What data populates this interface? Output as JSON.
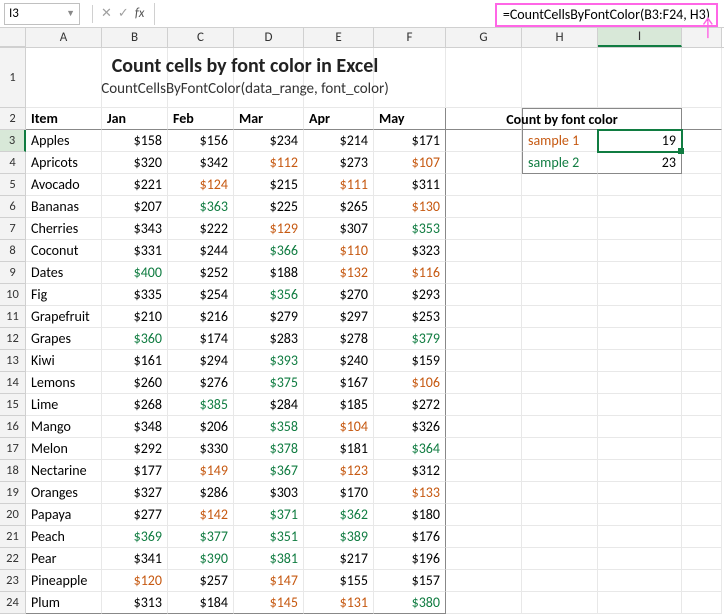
{
  "active_cell_ref": "I3",
  "formula_display": "=CountCellsByFontColor(B3:F24, H3)",
  "colors": {
    "black": "#000000",
    "orange": "#c65911",
    "green": "#107c41",
    "formula_box_border": "#ff66e6",
    "header_bg": "#f3f3f3",
    "grid_line": "#e8e8e8",
    "selection_green": "#107c41"
  },
  "columns": [
    "A",
    "B",
    "C",
    "D",
    "E",
    "F",
    "G",
    "H",
    "I"
  ],
  "title": {
    "main": "Count cells by font color in Excel",
    "sub": "CountCellsByFontColor(data_range, font_color)"
  },
  "data_table": {
    "header": {
      "item": "Item",
      "months": [
        "Jan",
        "Feb",
        "Mar",
        "Apr",
        "May"
      ]
    },
    "rows": [
      {
        "item": "Apples",
        "v": [
          {
            "t": "$158",
            "c": "black"
          },
          {
            "t": "$156",
            "c": "black"
          },
          {
            "t": "$234",
            "c": "black"
          },
          {
            "t": "$214",
            "c": "black"
          },
          {
            "t": "$171",
            "c": "black"
          }
        ]
      },
      {
        "item": "Apricots",
        "v": [
          {
            "t": "$320",
            "c": "black"
          },
          {
            "t": "$342",
            "c": "black"
          },
          {
            "t": "$112",
            "c": "orange"
          },
          {
            "t": "$273",
            "c": "black"
          },
          {
            "t": "$107",
            "c": "orange"
          }
        ]
      },
      {
        "item": "Avocado",
        "v": [
          {
            "t": "$221",
            "c": "black"
          },
          {
            "t": "$124",
            "c": "orange"
          },
          {
            "t": "$215",
            "c": "black"
          },
          {
            "t": "$111",
            "c": "orange"
          },
          {
            "t": "$311",
            "c": "black"
          }
        ]
      },
      {
        "item": "Bananas",
        "v": [
          {
            "t": "$207",
            "c": "black"
          },
          {
            "t": "$363",
            "c": "green"
          },
          {
            "t": "$225",
            "c": "black"
          },
          {
            "t": "$265",
            "c": "black"
          },
          {
            "t": "$130",
            "c": "orange"
          }
        ]
      },
      {
        "item": "Cherries",
        "v": [
          {
            "t": "$343",
            "c": "black"
          },
          {
            "t": "$222",
            "c": "black"
          },
          {
            "t": "$129",
            "c": "orange"
          },
          {
            "t": "$307",
            "c": "black"
          },
          {
            "t": "$353",
            "c": "green"
          }
        ]
      },
      {
        "item": "Coconut",
        "v": [
          {
            "t": "$331",
            "c": "black"
          },
          {
            "t": "$244",
            "c": "black"
          },
          {
            "t": "$366",
            "c": "green"
          },
          {
            "t": "$110",
            "c": "orange"
          },
          {
            "t": "$323",
            "c": "black"
          }
        ]
      },
      {
        "item": "Dates",
        "v": [
          {
            "t": "$400",
            "c": "green"
          },
          {
            "t": "$252",
            "c": "black"
          },
          {
            "t": "$188",
            "c": "black"
          },
          {
            "t": "$132",
            "c": "orange"
          },
          {
            "t": "$116",
            "c": "orange"
          }
        ]
      },
      {
        "item": "Fig",
        "v": [
          {
            "t": "$335",
            "c": "black"
          },
          {
            "t": "$254",
            "c": "black"
          },
          {
            "t": "$356",
            "c": "green"
          },
          {
            "t": "$270",
            "c": "black"
          },
          {
            "t": "$293",
            "c": "black"
          }
        ]
      },
      {
        "item": "Grapefruit",
        "v": [
          {
            "t": "$210",
            "c": "black"
          },
          {
            "t": "$216",
            "c": "black"
          },
          {
            "t": "$279",
            "c": "black"
          },
          {
            "t": "$297",
            "c": "black"
          },
          {
            "t": "$253",
            "c": "black"
          }
        ]
      },
      {
        "item": "Grapes",
        "v": [
          {
            "t": "$360",
            "c": "green"
          },
          {
            "t": "$174",
            "c": "black"
          },
          {
            "t": "$283",
            "c": "black"
          },
          {
            "t": "$278",
            "c": "black"
          },
          {
            "t": "$379",
            "c": "green"
          }
        ]
      },
      {
        "item": "Kiwi",
        "v": [
          {
            "t": "$161",
            "c": "black"
          },
          {
            "t": "$294",
            "c": "black"
          },
          {
            "t": "$393",
            "c": "green"
          },
          {
            "t": "$240",
            "c": "black"
          },
          {
            "t": "$159",
            "c": "black"
          }
        ]
      },
      {
        "item": "Lemons",
        "v": [
          {
            "t": "$260",
            "c": "black"
          },
          {
            "t": "$276",
            "c": "black"
          },
          {
            "t": "$375",
            "c": "green"
          },
          {
            "t": "$167",
            "c": "black"
          },
          {
            "t": "$106",
            "c": "orange"
          }
        ]
      },
      {
        "item": "Lime",
        "v": [
          {
            "t": "$268",
            "c": "black"
          },
          {
            "t": "$385",
            "c": "green"
          },
          {
            "t": "$284",
            "c": "black"
          },
          {
            "t": "$185",
            "c": "black"
          },
          {
            "t": "$272",
            "c": "black"
          }
        ]
      },
      {
        "item": "Mango",
        "v": [
          {
            "t": "$348",
            "c": "black"
          },
          {
            "t": "$206",
            "c": "black"
          },
          {
            "t": "$358",
            "c": "green"
          },
          {
            "t": "$104",
            "c": "orange"
          },
          {
            "t": "$326",
            "c": "black"
          }
        ]
      },
      {
        "item": "Melon",
        "v": [
          {
            "t": "$292",
            "c": "black"
          },
          {
            "t": "$330",
            "c": "black"
          },
          {
            "t": "$378",
            "c": "green"
          },
          {
            "t": "$181",
            "c": "black"
          },
          {
            "t": "$364",
            "c": "green"
          }
        ]
      },
      {
        "item": "Nectarine",
        "v": [
          {
            "t": "$177",
            "c": "black"
          },
          {
            "t": "$149",
            "c": "orange"
          },
          {
            "t": "$367",
            "c": "green"
          },
          {
            "t": "$123",
            "c": "orange"
          },
          {
            "t": "$312",
            "c": "black"
          }
        ]
      },
      {
        "item": "Oranges",
        "v": [
          {
            "t": "$327",
            "c": "black"
          },
          {
            "t": "$286",
            "c": "black"
          },
          {
            "t": "$303",
            "c": "black"
          },
          {
            "t": "$170",
            "c": "black"
          },
          {
            "t": "$133",
            "c": "orange"
          }
        ]
      },
      {
        "item": "Papaya",
        "v": [
          {
            "t": "$277",
            "c": "black"
          },
          {
            "t": "$142",
            "c": "orange"
          },
          {
            "t": "$371",
            "c": "green"
          },
          {
            "t": "$362",
            "c": "green"
          },
          {
            "t": "$180",
            "c": "black"
          }
        ]
      },
      {
        "item": "Peach",
        "v": [
          {
            "t": "$369",
            "c": "green"
          },
          {
            "t": "$377",
            "c": "green"
          },
          {
            "t": "$351",
            "c": "green"
          },
          {
            "t": "$389",
            "c": "green"
          },
          {
            "t": "$176",
            "c": "black"
          }
        ]
      },
      {
        "item": "Pear",
        "v": [
          {
            "t": "$341",
            "c": "black"
          },
          {
            "t": "$390",
            "c": "green"
          },
          {
            "t": "$381",
            "c": "green"
          },
          {
            "t": "$217",
            "c": "black"
          },
          {
            "t": "$196",
            "c": "black"
          }
        ]
      },
      {
        "item": "Pineapple",
        "v": [
          {
            "t": "$120",
            "c": "orange"
          },
          {
            "t": "$257",
            "c": "black"
          },
          {
            "t": "$147",
            "c": "orange"
          },
          {
            "t": "$155",
            "c": "black"
          },
          {
            "t": "$157",
            "c": "black"
          }
        ]
      },
      {
        "item": "Plum",
        "v": [
          {
            "t": "$313",
            "c": "black"
          },
          {
            "t": "$184",
            "c": "black"
          },
          {
            "t": "$145",
            "c": "orange"
          },
          {
            "t": "$131",
            "c": "orange"
          },
          {
            "t": "$380",
            "c": "green"
          }
        ]
      }
    ]
  },
  "count_table": {
    "header": "Count by font color",
    "rows": [
      {
        "label": "sample 1",
        "color": "orange",
        "value": "19",
        "active": true
      },
      {
        "label": "sample 2",
        "color": "green",
        "value": "23",
        "active": false
      }
    ]
  }
}
